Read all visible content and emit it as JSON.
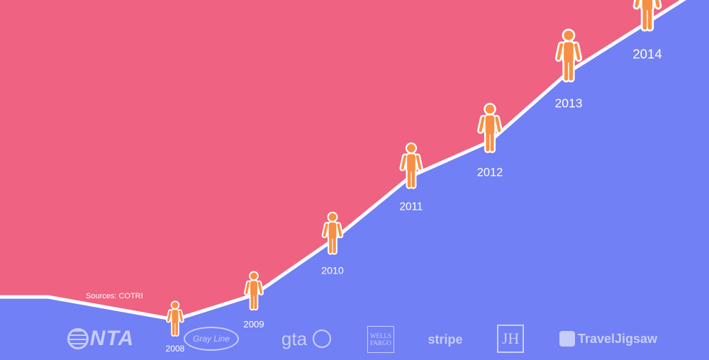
{
  "chart_data": {
    "type": "area",
    "title": "",
    "xlabel": "",
    "ylabel": "",
    "x": [
      "2008",
      "2009",
      "2010",
      "2011",
      "2012",
      "2013",
      "2014"
    ],
    "series": [
      {
        "values": [
          1.0,
          1.5,
          2.6,
          3.9,
          4.6,
          6.0,
          7.0
        ]
      }
    ],
    "ylim": [
      0,
      8
    ],
    "grid": false,
    "legend": "none",
    "annotations": [
      "Sources: COTRI"
    ],
    "colors": {
      "upper_area": "#ef6281",
      "lower_area": "#7280f5",
      "line": "#ffffff",
      "figure": "#f79045"
    }
  },
  "logos": [
    {
      "name": "nta-logo",
      "text": "NTA"
    },
    {
      "name": "grayline-logo",
      "text": "Gray Line"
    },
    {
      "name": "gta-logo",
      "text": "gta"
    },
    {
      "name": "wells-fargo-logo",
      "text": "WELLS FARGO"
    },
    {
      "name": "stripe-logo",
      "text": "stripe"
    },
    {
      "name": "jh-logo",
      "text": "JH"
    },
    {
      "name": "traveljigsaw-logo",
      "text": "TravelJigsaw"
    }
  ]
}
